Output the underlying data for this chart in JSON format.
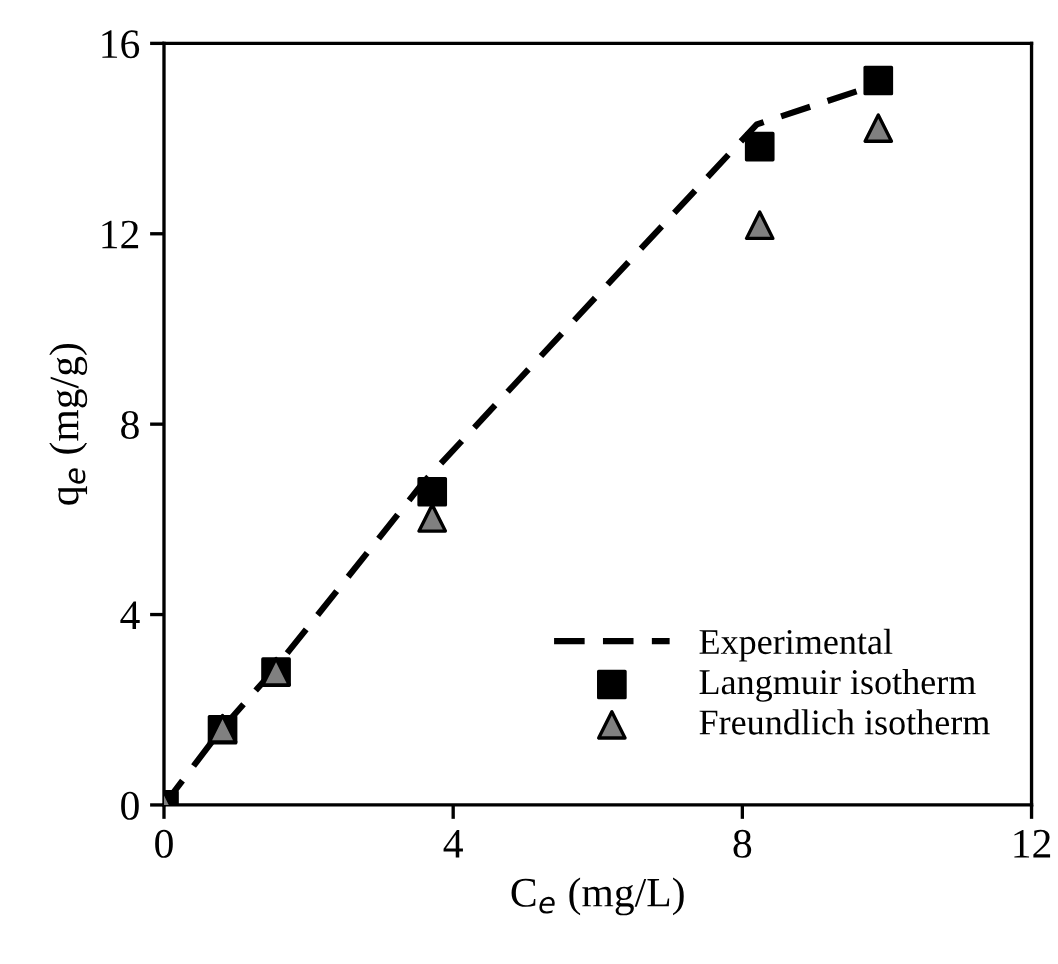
{
  "chart_data": {
    "type": "scatter",
    "xlabel": "C$_{e}$ (mg/L)",
    "ylabel": "q$_{e}$ (mg/g)",
    "xlim": [
      0,
      12
    ],
    "ylim": [
      0,
      16
    ],
    "xticks": [
      0,
      4,
      8,
      12
    ],
    "yticks": [
      0,
      4,
      8,
      12,
      16
    ],
    "grid": false,
    "legend": "bottom right",
    "series": [
      {
        "name": "Experimental",
        "type": "line",
        "line_style": "dashed",
        "marker": "none",
        "color": "#000000",
        "x": [
          0,
          0.8,
          1.5,
          3.6,
          8.2,
          9.6,
          9.9
        ],
        "values": [
          0,
          1.6,
          2.8,
          6.8,
          14.3,
          15.0,
          15.2
        ]
      },
      {
        "name": "Langmuir isotherm",
        "marker": "square",
        "color": "#000000",
        "x": [
          0,
          0.81,
          1.55,
          3.71,
          8.24,
          9.88
        ],
        "values": [
          0,
          1.58,
          2.79,
          6.58,
          13.83,
          15.22
        ]
      },
      {
        "name": "Freundlich isotherm",
        "marker": "triangle",
        "color": "#808080",
        "x": [
          0,
          0.81,
          1.55,
          3.71,
          8.24,
          9.88
        ],
        "values": [
          0,
          1.6,
          2.8,
          6.03,
          12.18,
          14.22
        ]
      }
    ]
  }
}
